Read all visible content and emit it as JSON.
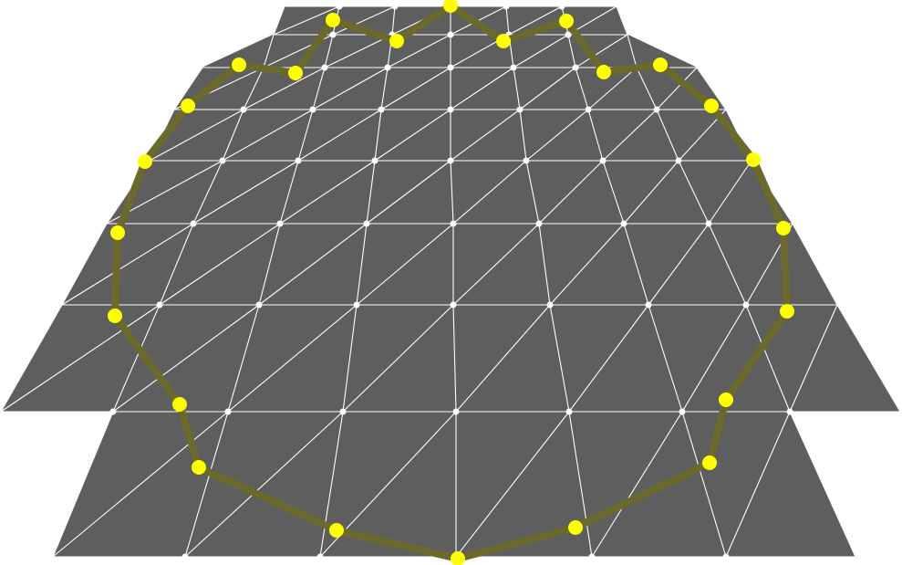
{
  "scene": {
    "description_visible_text": "",
    "mesh_grid": {
      "rows": 6,
      "cols": 8,
      "triangulated": true
    },
    "colors": {
      "background": "#ffffff",
      "mesh_fill": "#5e5e5e",
      "mesh_edge": "#ffffff",
      "vertex": "#ffffff",
      "polygon_stroke": "#6b6a2c",
      "control_point": "#ffff00"
    },
    "control_point_count": 24
  }
}
